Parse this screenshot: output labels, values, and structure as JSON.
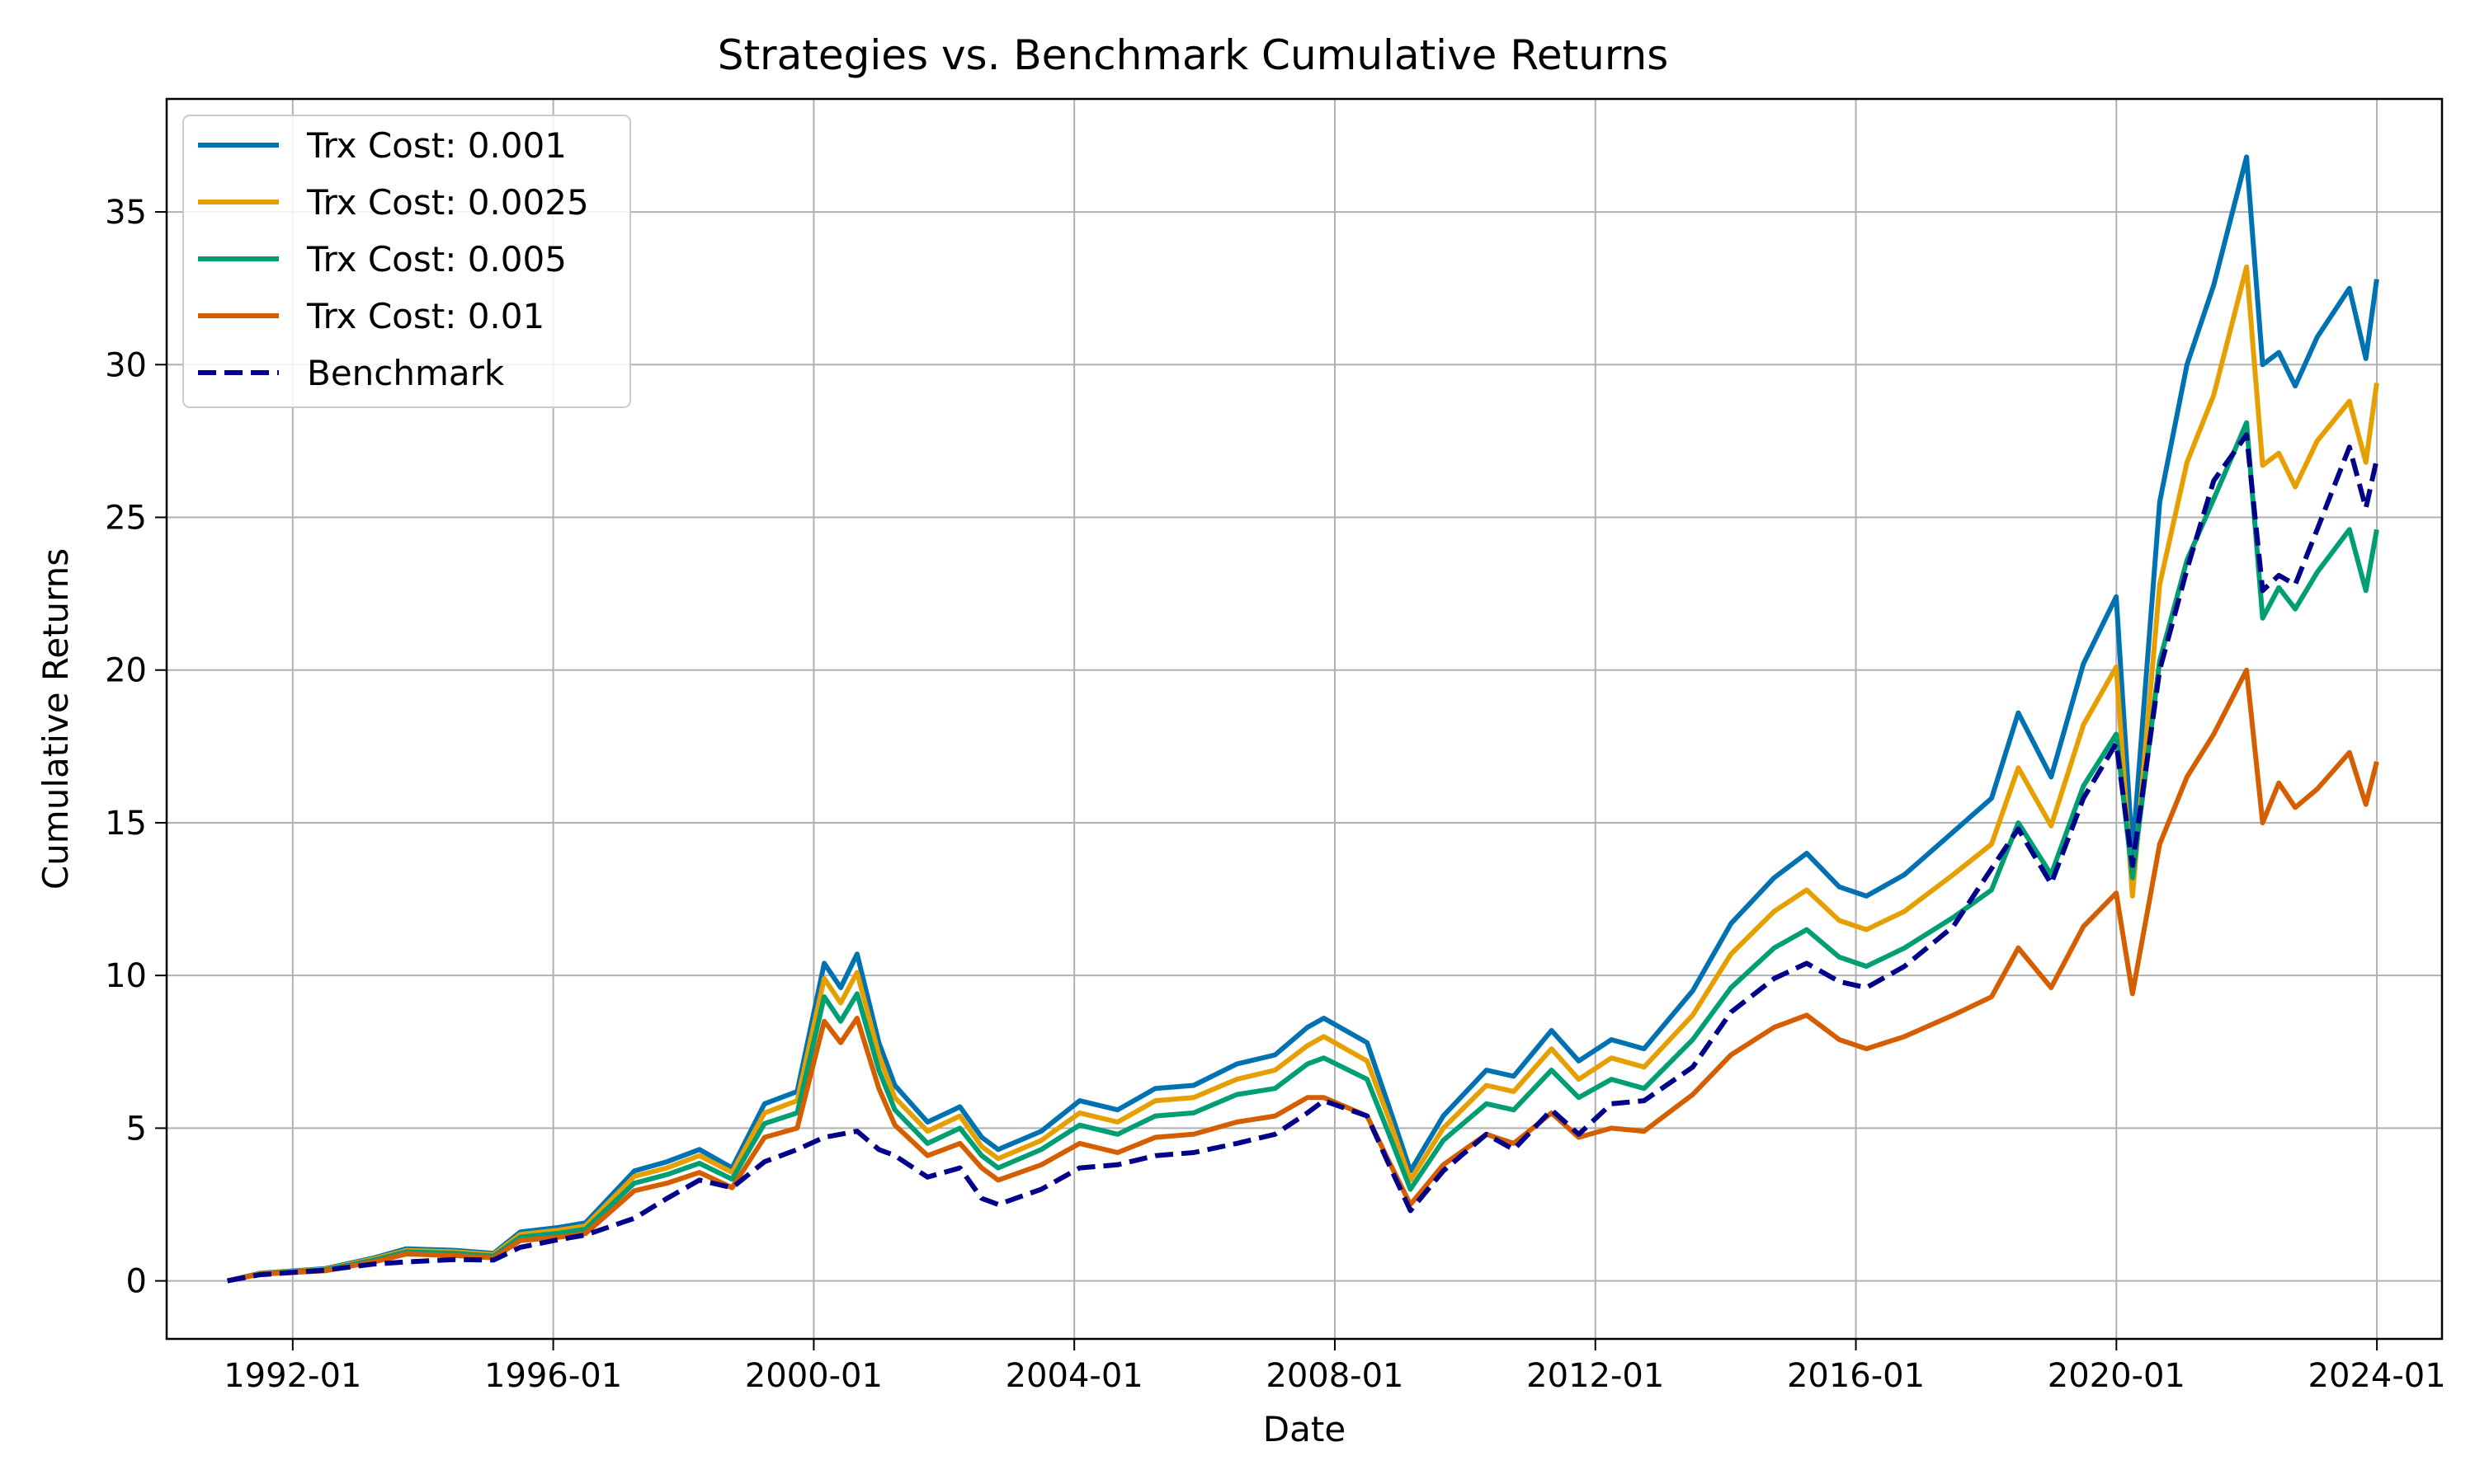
{
  "chart_data": {
    "type": "line",
    "title": "Strategies vs. Benchmark Cumulative Returns",
    "xlabel": "Date",
    "ylabel": "Cumulative Returns",
    "x_axis_type": "date",
    "xlim": [
      "1990-01-24",
      "2024-12-31"
    ],
    "ylim": [
      -1.9,
      38.7
    ],
    "x_ticks": [
      {
        "date": "1992-01-01",
        "label": "1992-01"
      },
      {
        "date": "1996-01-01",
        "label": "1996-01"
      },
      {
        "date": "2000-01-01",
        "label": "2000-01"
      },
      {
        "date": "2004-01-01",
        "label": "2004-01"
      },
      {
        "date": "2008-01-01",
        "label": "2008-01"
      },
      {
        "date": "2012-01-01",
        "label": "2012-01"
      },
      {
        "date": "2016-01-01",
        "label": "2016-01"
      },
      {
        "date": "2020-01-01",
        "label": "2020-01"
      },
      {
        "date": "2024-01-01",
        "label": "2024-01"
      }
    ],
    "y_ticks": [
      0,
      5,
      10,
      15,
      20,
      25,
      30,
      35
    ],
    "grid": true,
    "legend_position": "upper-left",
    "dates": [
      "1990-12-31",
      "1991-06-30",
      "1992-06-30",
      "1993-03-31",
      "1993-09-30",
      "1994-06-30",
      "1995-01-31",
      "1995-06-30",
      "1996-01-31",
      "1996-06-30",
      "1997-03-31",
      "1997-09-30",
      "1998-03-31",
      "1998-09-30",
      "1999-03-31",
      "1999-09-30",
      "2000-02-29",
      "2000-05-31",
      "2000-08-31",
      "2000-12-31",
      "2001-03-31",
      "2001-09-30",
      "2002-03-31",
      "2002-07-31",
      "2002-10-31",
      "2003-06-30",
      "2004-01-31",
      "2004-08-31",
      "2005-03-31",
      "2005-10-31",
      "2006-06-30",
      "2007-01-31",
      "2007-07-31",
      "2007-10-31",
      "2008-06-30",
      "2008-10-31",
      "2009-02-28",
      "2009-08-31",
      "2010-04-30",
      "2010-09-30",
      "2011-04-30",
      "2011-09-30",
      "2012-03-31",
      "2012-09-30",
      "2013-06-30",
      "2014-01-31",
      "2014-09-30",
      "2015-03-31",
      "2015-09-30",
      "2016-02-29",
      "2016-09-30",
      "2017-06-30",
      "2018-01-31",
      "2018-06-30",
      "2018-12-31",
      "2019-06-30",
      "2019-12-31",
      "2020-03-31",
      "2020-08-31",
      "2021-01-31",
      "2021-06-30",
      "2021-12-31",
      "2022-03-31",
      "2022-06-30",
      "2022-09-30",
      "2023-01-31",
      "2023-07-31",
      "2023-10-31",
      "2023-12-31"
    ],
    "series": [
      {
        "name": "Trx Cost: 0.001",
        "color": "#0072b2",
        "style": "solid",
        "values": [
          0.0,
          0.25,
          0.4,
          0.75,
          1.05,
          1.0,
          0.9,
          1.6,
          1.75,
          1.9,
          3.6,
          3.9,
          4.3,
          3.7,
          5.8,
          6.2,
          10.4,
          9.6,
          10.7,
          7.8,
          6.4,
          5.2,
          5.7,
          4.7,
          4.3,
          4.9,
          5.9,
          5.6,
          6.3,
          6.4,
          7.1,
          7.4,
          8.3,
          8.6,
          7.8,
          5.7,
          3.6,
          5.4,
          6.9,
          6.7,
          8.2,
          7.2,
          7.9,
          7.6,
          9.5,
          11.7,
          13.2,
          14.0,
          12.9,
          12.6,
          13.3,
          14.7,
          15.8,
          18.6,
          16.5,
          20.2,
          22.4,
          14.0,
          25.5,
          30.0,
          32.6,
          36.8,
          30.0,
          30.4,
          29.3,
          30.9,
          32.5,
          30.2,
          32.8
        ]
      },
      {
        "name": "Trx Cost: 0.0025",
        "color": "#e69f00",
        "style": "solid",
        "values": [
          0.0,
          0.24,
          0.38,
          0.72,
          1.0,
          0.95,
          0.86,
          1.52,
          1.66,
          1.8,
          3.42,
          3.7,
          4.1,
          3.55,
          5.5,
          5.9,
          9.9,
          9.1,
          10.1,
          7.4,
          6.0,
          4.9,
          5.4,
          4.4,
          4.0,
          4.6,
          5.5,
          5.2,
          5.9,
          6.0,
          6.6,
          6.9,
          7.7,
          8.0,
          7.2,
          5.3,
          3.3,
          5.0,
          6.4,
          6.2,
          7.6,
          6.6,
          7.3,
          7.0,
          8.7,
          10.7,
          12.1,
          12.8,
          11.8,
          11.5,
          12.1,
          13.3,
          14.3,
          16.8,
          14.9,
          18.2,
          20.1,
          12.6,
          22.8,
          26.8,
          29.0,
          33.2,
          26.7,
          27.1,
          26.0,
          27.5,
          28.8,
          26.8,
          29.4
        ]
      },
      {
        "name": "Trx Cost: 0.005",
        "color": "#009e73",
        "style": "solid",
        "values": [
          0.0,
          0.23,
          0.36,
          0.68,
          0.95,
          0.9,
          0.81,
          1.43,
          1.56,
          1.69,
          3.2,
          3.48,
          3.85,
          3.33,
          5.15,
          5.5,
          9.3,
          8.5,
          9.4,
          6.9,
          5.6,
          4.5,
          5.0,
          4.1,
          3.7,
          4.3,
          5.1,
          4.8,
          5.4,
          5.5,
          6.1,
          6.3,
          7.1,
          7.3,
          6.6,
          4.8,
          3.0,
          4.6,
          5.8,
          5.6,
          6.9,
          6.0,
          6.6,
          6.3,
          7.9,
          9.6,
          10.9,
          11.5,
          10.6,
          10.3,
          10.9,
          11.9,
          12.8,
          15.0,
          13.3,
          16.2,
          17.9,
          13.2,
          20.3,
          23.6,
          25.6,
          28.1,
          21.7,
          22.7,
          22.0,
          23.2,
          24.6,
          22.6,
          24.6
        ]
      },
      {
        "name": "Trx Cost: 0.01",
        "color": "#d55e00",
        "style": "solid",
        "values": [
          0.0,
          0.22,
          0.33,
          0.62,
          0.88,
          0.83,
          0.75,
          1.32,
          1.43,
          1.55,
          2.95,
          3.2,
          3.55,
          3.05,
          4.7,
          5.0,
          8.5,
          7.8,
          8.6,
          6.3,
          5.1,
          4.1,
          4.5,
          3.7,
          3.3,
          3.8,
          4.5,
          4.2,
          4.7,
          4.8,
          5.2,
          5.4,
          6.0,
          6.0,
          5.4,
          3.9,
          2.5,
          3.8,
          4.8,
          4.5,
          5.5,
          4.7,
          5.0,
          4.9,
          6.1,
          7.4,
          8.3,
          8.7,
          7.9,
          7.6,
          8.0,
          8.7,
          9.3,
          10.9,
          9.6,
          11.6,
          12.7,
          9.4,
          14.3,
          16.5,
          17.9,
          20.0,
          15.0,
          16.3,
          15.5,
          16.1,
          17.3,
          15.6,
          17.0
        ]
      },
      {
        "name": "Benchmark",
        "color": "#00008b",
        "style": "dashed",
        "values": [
          0.0,
          0.2,
          0.35,
          0.55,
          0.62,
          0.7,
          0.68,
          1.1,
          1.35,
          1.5,
          2.05,
          2.7,
          3.3,
          3.05,
          3.9,
          4.3,
          4.7,
          4.8,
          4.9,
          4.3,
          4.1,
          3.4,
          3.7,
          2.7,
          2.5,
          3.0,
          3.7,
          3.8,
          4.1,
          4.2,
          4.5,
          4.8,
          5.5,
          5.9,
          5.4,
          3.8,
          2.3,
          3.6,
          4.8,
          4.3,
          5.6,
          4.8,
          5.8,
          5.9,
          7.0,
          8.8,
          9.9,
          10.4,
          9.8,
          9.6,
          10.3,
          11.6,
          13.5,
          14.8,
          13.0,
          15.8,
          17.6,
          13.6,
          20.0,
          23.3,
          26.2,
          27.7,
          22.6,
          23.1,
          22.8,
          24.6,
          27.3,
          25.3,
          26.9
        ]
      }
    ]
  }
}
